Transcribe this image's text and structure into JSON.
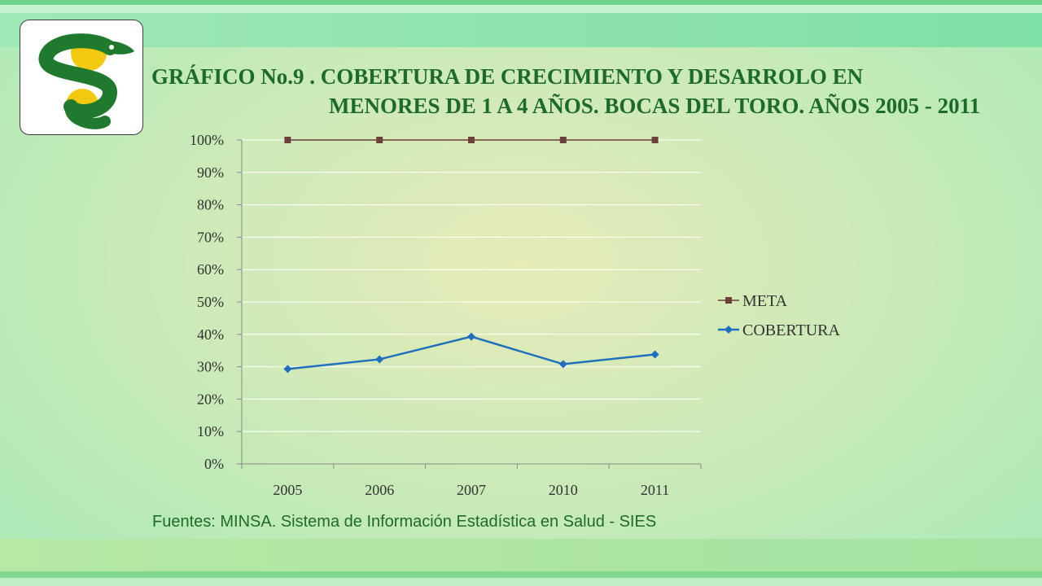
{
  "title": {
    "line1": "GRÁFICO No.9 . COBERTURA DE CRECIMIENTO Y DESARROLO EN",
    "line2": "MENORES DE 1 A 4 AÑOS. BOCAS DEL TORO. AÑOS 2005 - 2011"
  },
  "source": "Fuentes: MINSA. Sistema de Información Estadística en Salud - SIES",
  "logo": {
    "icon": "snake-emblem-icon"
  },
  "colors": {
    "title": "#1d6b2c",
    "meta": "#6b3f3a",
    "cobertura": "#1f6fbf",
    "grid": "#ffffff",
    "axis": "#8a8a8a"
  },
  "chart_data": {
    "type": "line",
    "categories": [
      "2005",
      "2006",
      "2007",
      "2010",
      "2011"
    ],
    "series": [
      {
        "name": "META",
        "values": [
          100,
          100,
          100,
          100,
          100
        ],
        "marker": "square"
      },
      {
        "name": "COBERTURA",
        "values": [
          29.3,
          32.3,
          39.3,
          30.8,
          33.8
        ],
        "marker": "diamond"
      }
    ],
    "yticks": [
      "0%",
      "10%",
      "20%",
      "30%",
      "40%",
      "50%",
      "60%",
      "70%",
      "80%",
      "90%",
      "100%"
    ],
    "ylim": [
      0,
      100
    ],
    "grid": true,
    "legend": "right"
  }
}
